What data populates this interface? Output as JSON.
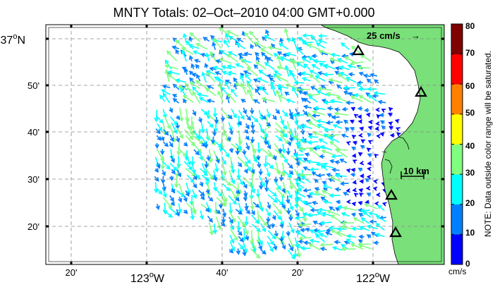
{
  "title": "MNTY Totals: 02–Oct–2010 04:00 GMT+0.000",
  "axes": {
    "x_major": [
      {
        "value": "123",
        "suffix": "W"
      },
      {
        "value": "122",
        "suffix": "W"
      }
    ],
    "x_minor": [
      "20'",
      "40'",
      "20'"
    ],
    "y_major": [
      {
        "value": "37",
        "suffix": "N"
      }
    ],
    "y_minor": [
      "50'",
      "40'",
      "30'",
      "20'"
    ],
    "degree_symbol": "o"
  },
  "reference_vector": {
    "label": "25 cm/s",
    "arrow": "→"
  },
  "scale_bar": {
    "label": "10 km"
  },
  "colorbar": {
    "ticks": [
      "0",
      "10",
      "20",
      "30",
      "40",
      "50",
      "60",
      "70",
      "80"
    ],
    "unit": "cm/s",
    "note": "NOTE: Data outside color range will be saturated.",
    "colors": [
      "#0000ff",
      "#0080ff",
      "#00ffff",
      "#80ff80",
      "#ffff00",
      "#ff8000",
      "#ff0000",
      "#800000"
    ]
  },
  "land_color": "#7ae07a",
  "map_elements": {
    "stations": [
      "station-triangle",
      "station-triangle",
      "station-triangle",
      "station-triangle",
      "station-triangle"
    ]
  }
}
